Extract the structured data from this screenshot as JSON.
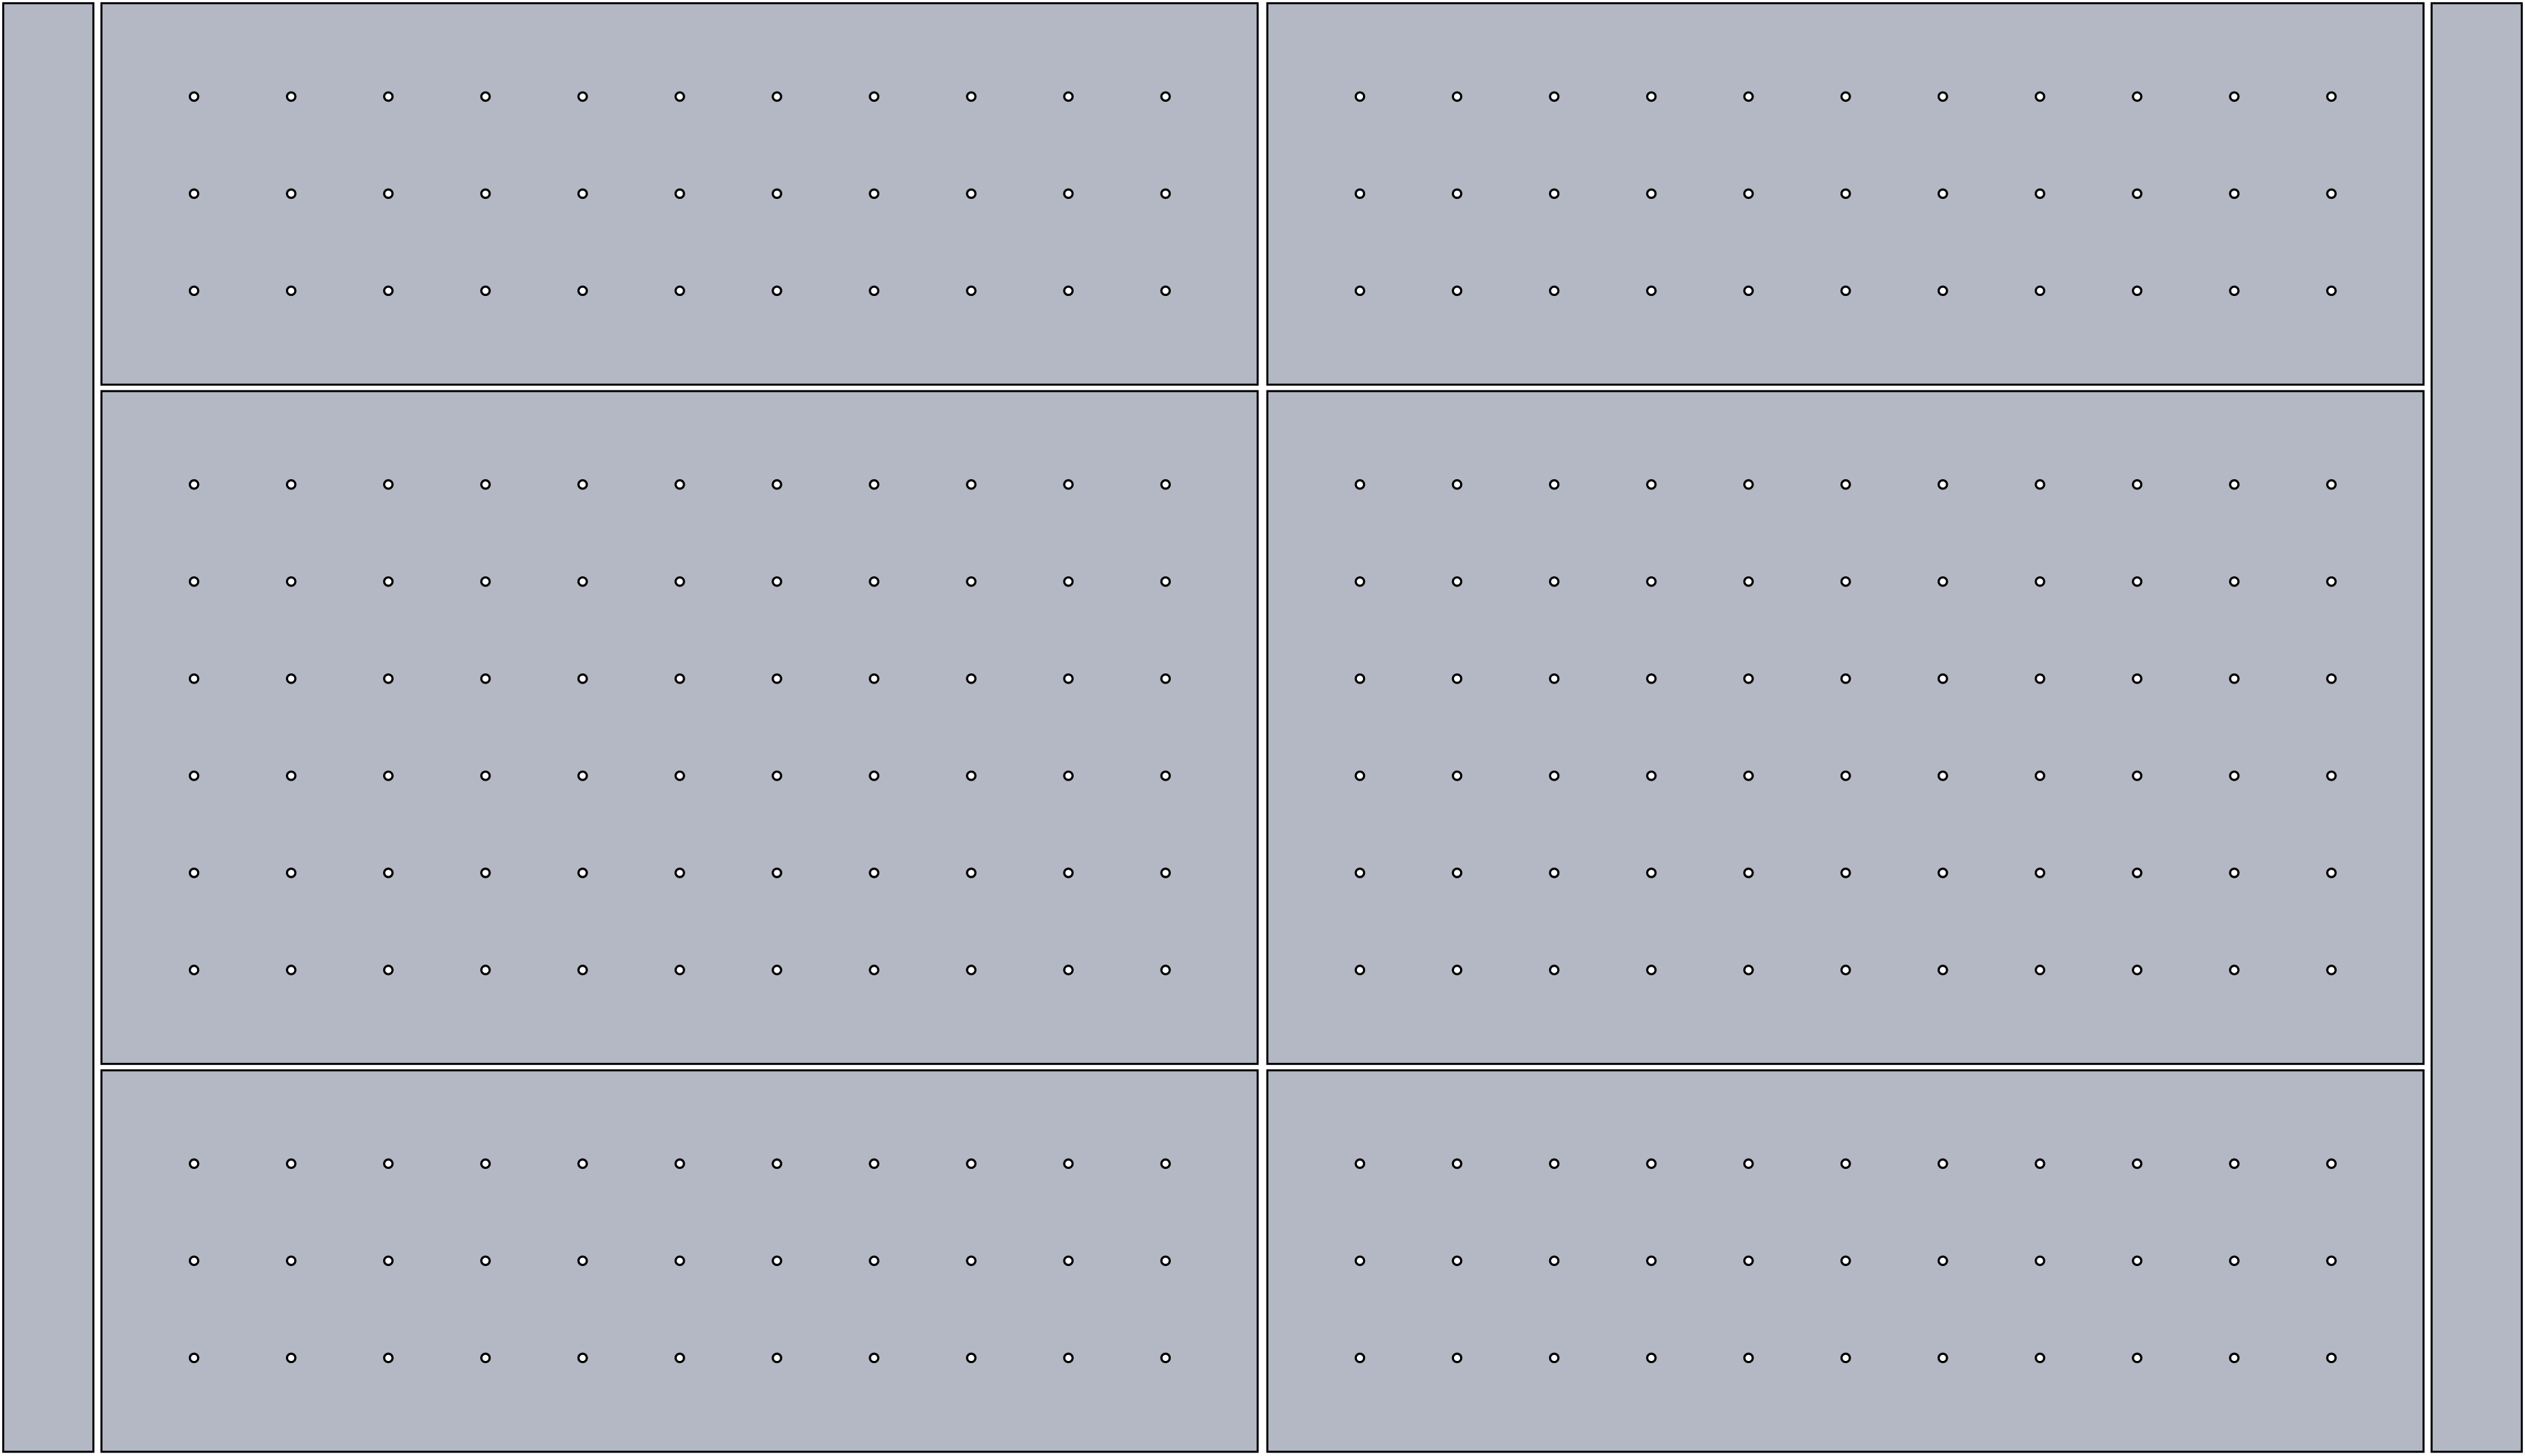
{
  "diagram": {
    "colors": {
      "background": "#ffffff",
      "panel_fill": "#b3b8c4",
      "panel_stroke": "#000000",
      "hole_fill": "#ffffff",
      "hole_stroke": "#000000"
    },
    "layout": {
      "side_strips": 2,
      "panel_columns": 2,
      "panel_rows": 3
    },
    "panels": [
      {
        "id": "top-left",
        "hole_rows": 3,
        "hole_cols": 11
      },
      {
        "id": "top-right",
        "hole_rows": 3,
        "hole_cols": 11
      },
      {
        "id": "middle-left",
        "hole_rows": 6,
        "hole_cols": 11
      },
      {
        "id": "middle-right",
        "hole_rows": 6,
        "hole_cols": 11
      },
      {
        "id": "bottom-left",
        "hole_rows": 3,
        "hole_cols": 11
      },
      {
        "id": "bottom-right",
        "hole_rows": 3,
        "hole_cols": 11
      }
    ]
  }
}
